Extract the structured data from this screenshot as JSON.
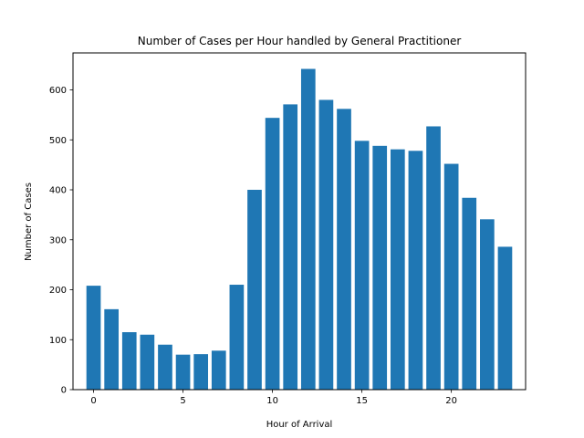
{
  "chart_data": {
    "type": "bar",
    "title": "Number of Cases per Hour handled by General Practitioner",
    "xlabel": "Hour of Arrival",
    "ylabel": "Number of Cases",
    "categories": [
      0,
      1,
      2,
      3,
      4,
      5,
      6,
      7,
      8,
      9,
      10,
      11,
      12,
      13,
      14,
      15,
      16,
      17,
      18,
      19,
      20,
      21,
      22,
      23
    ],
    "values": [
      208,
      161,
      115,
      110,
      90,
      70,
      71,
      78,
      210,
      400,
      544,
      571,
      642,
      580,
      562,
      498,
      488,
      481,
      478,
      527,
      452,
      384,
      341,
      286
    ],
    "xlim": [
      -1.15,
      24.15
    ],
    "ylim": [
      0,
      674
    ],
    "x_ticks": [
      0,
      5,
      10,
      15,
      20
    ],
    "y_ticks": [
      0,
      100,
      200,
      300,
      400,
      500,
      600
    ],
    "bar_color": "#1f77b4",
    "grid": false
  }
}
